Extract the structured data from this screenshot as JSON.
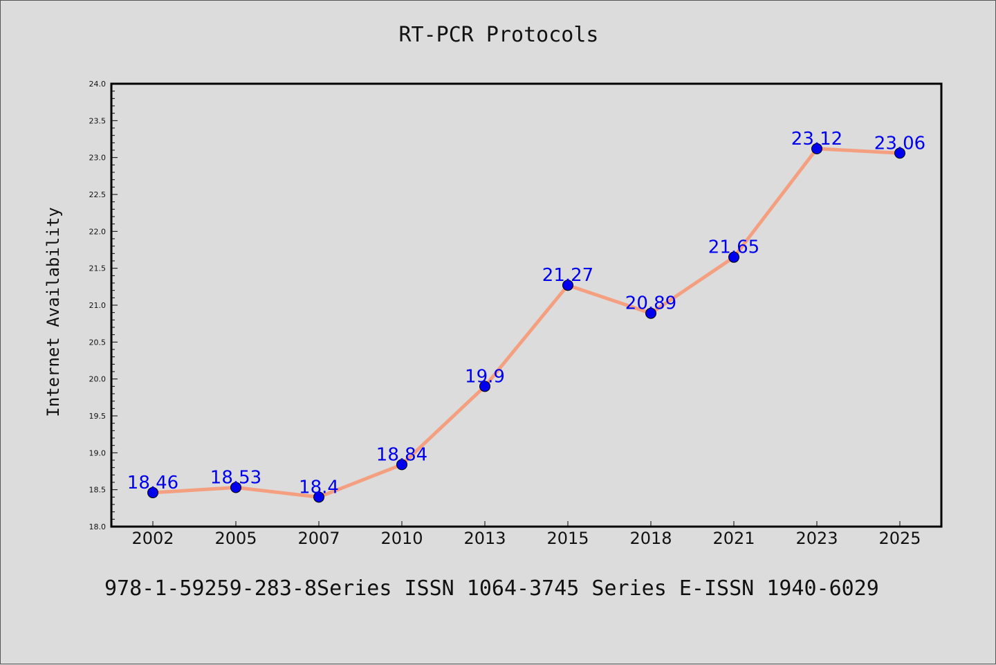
{
  "chart_data": {
    "type": "line",
    "title": "RT-PCR Protocols",
    "ylabel": "Internet Availability",
    "xlabel": "",
    "categories": [
      "2002",
      "2005",
      "2007",
      "2010",
      "2013",
      "2015",
      "2018",
      "2021",
      "2023",
      "2025"
    ],
    "values": [
      18.46,
      18.53,
      18.4,
      18.84,
      19.9,
      21.27,
      20.89,
      21.65,
      23.12,
      23.06
    ],
    "data_labels": [
      "18.46",
      "18.53",
      "18.4",
      "18.84",
      "19.9",
      "21.27",
      "20.89",
      "21.65",
      "23.12",
      "23.06"
    ],
    "ylim": [
      18.0,
      24.0
    ],
    "yticks": [
      "18.0",
      "18.5",
      "19.0",
      "19.5",
      "20.0",
      "20.5",
      "21.0",
      "21.5",
      "22.0",
      "22.5",
      "23.0",
      "23.5",
      "24.0"
    ],
    "grid": false,
    "line_color": "#f4a080",
    "marker_color": "#0000ee",
    "label_color": "#0000ee"
  },
  "footer": "978-1-59259-283-8Series ISSN 1064-3745 Series E-ISSN 1940-6029"
}
